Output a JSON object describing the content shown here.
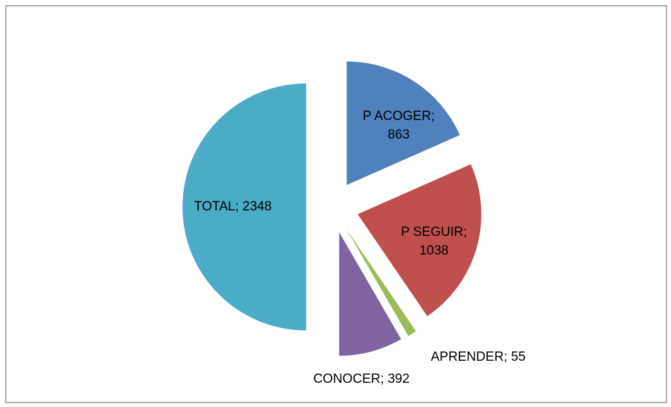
{
  "chart_data": {
    "type": "pie",
    "categories": [
      "P ACOGER",
      "P SEGUIR",
      "APRENDER",
      "CONOCER",
      "TOTAL"
    ],
    "values": [
      863,
      1038,
      55,
      392,
      2348
    ],
    "value_labels": [
      "P ACOGER; 863",
      "P SEGUIR; 1038",
      "APRENDER; 55",
      "CONOCER; 392",
      "TOTAL; 2348"
    ],
    "colors": [
      "#4f81bd",
      "#c0504d",
      "#9bbb59",
      "#8064a2",
      "#4bacc6"
    ],
    "exploded": true
  }
}
